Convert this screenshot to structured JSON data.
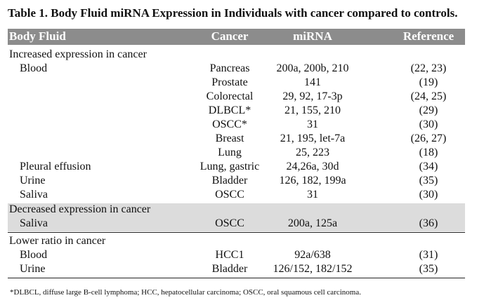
{
  "caption": "Table 1. Body Fluid miRNA Expression in Individuals with cancer compared to controls.",
  "headers": {
    "fluid": "Body Fluid",
    "cancer": "Cancer",
    "mirna": "miRNA",
    "reference": "Reference"
  },
  "sections": {
    "increased": "Increased expression in cancer",
    "decreased": "Decreased expression in cancer",
    "lower": "Lower ratio in cancer"
  },
  "rows": [
    {
      "fluid": "Blood",
      "cancer": "Pancreas",
      "mirna": "200a, 200b, 210",
      "reference": "(22, 23)"
    },
    {
      "fluid": "",
      "cancer": "Prostate",
      "mirna": "141",
      "reference": "(19)"
    },
    {
      "fluid": "",
      "cancer": "Colorectal",
      "mirna": "29, 92, 17-3p",
      "reference": "(24, 25)"
    },
    {
      "fluid": "",
      "cancer": "DLBCL*",
      "mirna": "21, 155, 210",
      "reference": "(29)"
    },
    {
      "fluid": "",
      "cancer": "OSCC*",
      "mirna": "31",
      "reference": "(30)"
    },
    {
      "fluid": "",
      "cancer": "Breast",
      "mirna": "21, 195, let-7a",
      "reference": "(26, 27)"
    },
    {
      "fluid": "",
      "cancer": "Lung",
      "mirna": "25, 223",
      "reference": "(18)"
    },
    {
      "fluid": "Pleural effusion",
      "cancer": "Lung, gastric",
      "mirna": "24,26a, 30d",
      "reference": "(34)"
    },
    {
      "fluid": "Urine",
      "cancer": "Bladder",
      "mirna": "126, 182, 199a",
      "reference": "(35)"
    },
    {
      "fluid": "Saliva",
      "cancer": "OSCC",
      "mirna": "31",
      "reference": "(30)"
    },
    {
      "fluid": "Saliva",
      "cancer": "OSCC",
      "mirna": "200a, 125a",
      "reference": "(36)"
    },
    {
      "fluid": "Blood",
      "cancer": "HCC1",
      "mirna": "92a/638",
      "reference": "(31)"
    },
    {
      "fluid": "Urine",
      "cancer": "Bladder",
      "mirna": "126/152, 182/152",
      "reference": "(35)"
    }
  ],
  "footnote": "*DLBCL, diffuse large B-cell lymphoma; HCC, hepatocellular carcinoma; OSCC, oral squamous cell carcinoma."
}
